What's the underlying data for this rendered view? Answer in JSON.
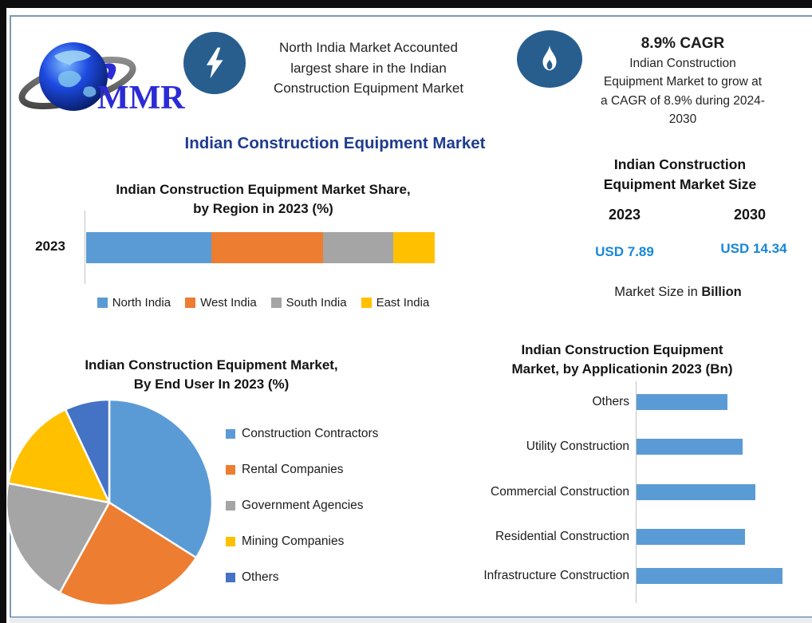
{
  "logo": {
    "text": "MMR"
  },
  "highlights": {
    "north": {
      "lines": [
        "North India Market Accounted",
        "largest share in the Indian",
        "Construction Equipment Market"
      ]
    },
    "cagr": {
      "headline": "8.9% CAGR",
      "lines": [
        "Indian Construction",
        "Equipment Market to grow at",
        "a CAGR of 8.9% during 2024-",
        "2030"
      ]
    }
  },
  "main_title": "Indian Construction Equipment Market",
  "market_size": {
    "title_lines": [
      "Indian Construction",
      "Equipment Market Size"
    ],
    "year_left": "2023",
    "year_right": "2030",
    "value_left": "USD 7.89",
    "value_right": "USD 14.34",
    "note_prefix": "Market Size in ",
    "note_bold": "Billion"
  },
  "colors": {
    "icon_blue": "#275e8e",
    "navy_title": "#1f3c8f",
    "usd_blue": "#1887d8",
    "series_blue": "#5b9bd5",
    "series_orange": "#ed7d31",
    "series_gray": "#a5a5a5",
    "series_yellow": "#ffc000",
    "series_darkblue": "#4472c4"
  },
  "chart_data": [
    {
      "type": "bar",
      "variant": "stacked-horizontal",
      "title": "Indian Construction Equipment Market Share, by Region in 2023 (%)",
      "title_lines": [
        "Indian Construction Equipment Market Share,",
        "by Region in 2023 (%)"
      ],
      "categories": [
        "2023"
      ],
      "series": [
        {
          "name": "North India",
          "values": [
            36
          ],
          "color": "#5b9bd5"
        },
        {
          "name": "West India",
          "values": [
            32
          ],
          "color": "#ed7d31"
        },
        {
          "name": "South India",
          "values": [
            20
          ],
          "color": "#a5a5a5"
        },
        {
          "name": "East India",
          "values": [
            12
          ],
          "color": "#ffc000"
        }
      ],
      "xlim": [
        0,
        100
      ],
      "grid": false,
      "legend_position": "bottom"
    },
    {
      "type": "pie",
      "title": "Indian Construction Equipment Market, By End User In 2023 (%)",
      "title_lines": [
        "Indian Construction Equipment Market,",
        "By End User In 2023 (%)"
      ],
      "labels": [
        "Construction Contractors",
        "Rental Companies",
        "Government Agencies",
        "Mining Companies",
        "Others"
      ],
      "values": [
        34,
        24,
        20,
        15,
        7
      ],
      "colors": [
        "#5b9bd5",
        "#ed7d31",
        "#a5a5a5",
        "#ffc000",
        "#4472c4"
      ],
      "start_angle_deg": 0,
      "direction": "clockwise",
      "legend_position": "right"
    },
    {
      "type": "bar",
      "variant": "horizontal",
      "title": "Indian Construction Equipment Market, by Applicationin 2023 (Bn)",
      "title_lines": [
        "Indian Construction Equipment",
        "Market, by Applicationin 2023 (Bn)"
      ],
      "categories": [
        "Others",
        "Utility Construction",
        "Commercial Construction",
        "Residential Construction",
        "Infrastructure Construction"
      ],
      "values": [
        1.26,
        1.47,
        1.64,
        1.5,
        2.02
      ],
      "color": "#5b9bd5",
      "grid": false,
      "value_labels": false
    }
  ]
}
